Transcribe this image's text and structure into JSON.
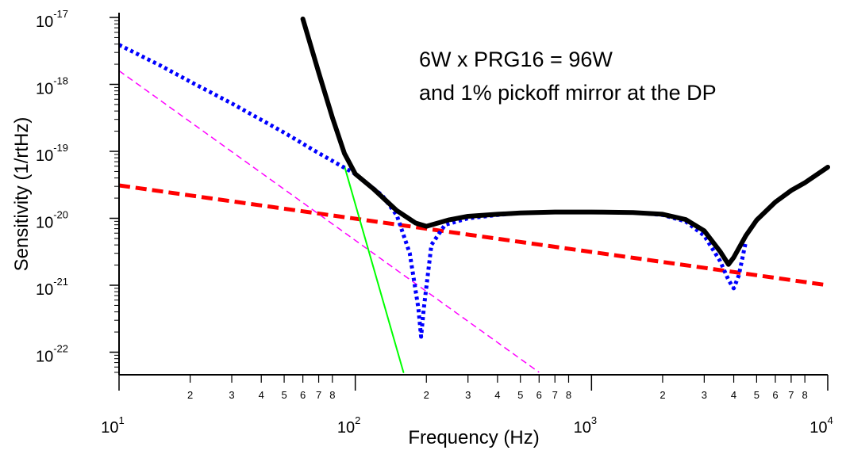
{
  "chart_data": {
    "type": "line",
    "xscale": "log",
    "yscale": "log",
    "xlabel": "Frequency (Hz)",
    "ylabel": "Sensitivity (1/rtHz)",
    "xlim": [
      10,
      10000
    ],
    "ylim": [
      1e-23,
      1e-17
    ],
    "grid": false,
    "annotations": [
      "6W x PRG16 = 96W",
      "and 1% pickoff mirror at the DP"
    ],
    "x_major_ticks": [
      {
        "value": 10,
        "base": "10",
        "exp": "1"
      },
      {
        "value": 100,
        "base": "10",
        "exp": "2"
      },
      {
        "value": 1000,
        "base": "10",
        "exp": "3"
      },
      {
        "value": 10000,
        "base": "10",
        "exp": "4"
      }
    ],
    "x_minor_ticks": [
      {
        "value": 20,
        "label": "2"
      },
      {
        "value": 30,
        "label": "3"
      },
      {
        "value": 40,
        "label": "4"
      },
      {
        "value": 50,
        "label": "5"
      },
      {
        "value": 60,
        "label": "6"
      },
      {
        "value": 70,
        "label": "7"
      },
      {
        "value": 80,
        "label": "8"
      },
      {
        "value": 200,
        "label": "2"
      },
      {
        "value": 300,
        "label": "3"
      },
      {
        "value": 400,
        "label": "4"
      },
      {
        "value": 500,
        "label": "5"
      },
      {
        "value": 600,
        "label": "6"
      },
      {
        "value": 700,
        "label": "7"
      },
      {
        "value": 800,
        "label": "8"
      },
      {
        "value": 2000,
        "label": "2"
      },
      {
        "value": 3000,
        "label": "3"
      },
      {
        "value": 4000,
        "label": "4"
      },
      {
        "value": 5000,
        "label": "5"
      },
      {
        "value": 6000,
        "label": "6"
      },
      {
        "value": 7000,
        "label": "7"
      },
      {
        "value": 8000,
        "label": "8"
      }
    ],
    "y_major_ticks": [
      {
        "value": 1e-22,
        "base": "10",
        "exp": "-22"
      },
      {
        "value": 1e-21,
        "base": "10",
        "exp": "-21"
      },
      {
        "value": 1e-20,
        "base": "10",
        "exp": "-20"
      },
      {
        "value": 1e-19,
        "base": "10",
        "exp": "-19"
      },
      {
        "value": 1e-18,
        "base": "10",
        "exp": "-18"
      },
      {
        "value": 1e-17,
        "base": "10",
        "exp": "-17"
      }
    ],
    "series": [
      {
        "color": "#000000",
        "style": "solid",
        "width": 6,
        "x": [
          60,
          70,
          80,
          90,
          100,
          120,
          150,
          180,
          200,
          250,
          300,
          400,
          500,
          700,
          1000,
          1500,
          2000,
          2500,
          3000,
          3500,
          3800,
          4000,
          4500,
          5000,
          6000,
          7000,
          8000,
          10000
        ],
        "y": [
          9.5e-18,
          1.5e-18,
          3.2e-19,
          9.3e-20,
          4.6e-20,
          2.7e-20,
          1.3e-20,
          8.5e-21,
          7.6e-21,
          9.5e-21,
          1.07e-20,
          1.15e-20,
          1.2e-20,
          1.24e-20,
          1.24e-20,
          1.22e-20,
          1.15e-20,
          9.6e-21,
          6.5e-21,
          3.2e-21,
          2.05e-21,
          2.6e-21,
          5.5e-21,
          9.4e-21,
          1.75e-20,
          2.6e-20,
          3.4e-20,
          5.8e-20
        ]
      },
      {
        "color": "#0000ff",
        "style": "dotted",
        "width": 5,
        "x": [
          10,
          15,
          20,
          30,
          50,
          70,
          100,
          130,
          150,
          170,
          185,
          190,
          195,
          210,
          240,
          300,
          400,
          500,
          700,
          1000,
          1500,
          2000,
          2500,
          3000,
          3500,
          3800,
          4000,
          4200,
          4500
        ],
        "y": [
          3.9e-18,
          1.9e-18,
          1.1e-18,
          5.2e-19,
          1.9e-19,
          9.4e-20,
          4.6e-20,
          2.2e-20,
          1.1e-20,
          3e-21,
          4.5e-22,
          1.7e-22,
          4.5e-22,
          4e-21,
          8e-21,
          1e-20,
          1.12e-20,
          1.2e-20,
          1.24e-20,
          1.24e-20,
          1.22e-20,
          1.12e-20,
          9e-21,
          5.5e-21,
          2.3e-21,
          1.2e-21,
          9e-22,
          1.4e-21,
          4.5e-21
        ]
      },
      {
        "color": "#ff0000",
        "style": "dashed",
        "width": 5,
        "x": [
          10,
          10000
        ],
        "y": [
          3.1e-20,
          1e-21
        ]
      },
      {
        "color": "#ff00ff",
        "style": "dashed",
        "width": 1.5,
        "x": [
          10,
          600
        ],
        "y": [
          1.6e-18,
          5e-23
        ]
      },
      {
        "color": "#00ff00",
        "style": "solid",
        "width": 2,
        "x": [
          90,
          160
        ],
        "y": [
          6e-20,
          5e-23
        ]
      }
    ]
  }
}
